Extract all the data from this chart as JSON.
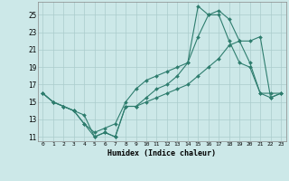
{
  "title": "",
  "xlabel": "Humidex (Indice chaleur)",
  "bg_color": "#cce8e8",
  "line_color": "#2e7d6e",
  "grid_color": "#aacccc",
  "xlim": [
    -0.5,
    23.5
  ],
  "ylim": [
    10.5,
    26.5
  ],
  "xticks": [
    0,
    1,
    2,
    3,
    4,
    5,
    6,
    7,
    8,
    9,
    10,
    11,
    12,
    13,
    14,
    15,
    16,
    17,
    18,
    19,
    20,
    21,
    22,
    23
  ],
  "yticks": [
    11,
    13,
    15,
    17,
    19,
    21,
    23,
    25
  ],
  "line1_x": [
    0,
    1,
    2,
    3,
    4,
    5,
    6,
    7,
    8,
    9,
    10,
    11,
    12,
    13,
    14,
    15,
    16,
    17,
    18,
    19,
    20,
    21,
    22,
    23
  ],
  "line1_y": [
    16.0,
    15.0,
    14.5,
    14.0,
    13.5,
    11.0,
    11.5,
    11.0,
    14.5,
    14.5,
    15.0,
    15.5,
    16.0,
    16.5,
    17.0,
    18.0,
    19.0,
    20.0,
    21.5,
    22.0,
    22.0,
    22.5,
    15.5,
    16.0
  ],
  "line2_x": [
    0,
    1,
    2,
    3,
    4,
    5,
    6,
    7,
    8,
    9,
    10,
    11,
    12,
    13,
    14,
    15,
    16,
    17,
    18,
    19,
    20,
    21,
    22,
    23
  ],
  "line2_y": [
    16.0,
    15.0,
    14.5,
    14.0,
    12.5,
    11.5,
    12.0,
    12.5,
    15.0,
    16.5,
    17.5,
    18.0,
    18.5,
    19.0,
    19.5,
    22.5,
    25.0,
    25.0,
    22.0,
    19.5,
    19.0,
    16.0,
    16.0,
    16.0
  ],
  "line3_x": [
    0,
    1,
    2,
    3,
    4,
    5,
    6,
    7,
    8,
    9,
    10,
    11,
    12,
    13,
    14,
    15,
    16,
    17,
    18,
    19,
    20,
    21,
    22,
    23
  ],
  "line3_y": [
    16.0,
    15.0,
    14.5,
    14.0,
    12.5,
    11.0,
    11.5,
    11.0,
    14.5,
    14.5,
    15.5,
    16.5,
    17.0,
    18.0,
    19.5,
    26.0,
    25.0,
    25.5,
    24.5,
    22.0,
    19.5,
    16.0,
    15.5,
    16.0
  ]
}
